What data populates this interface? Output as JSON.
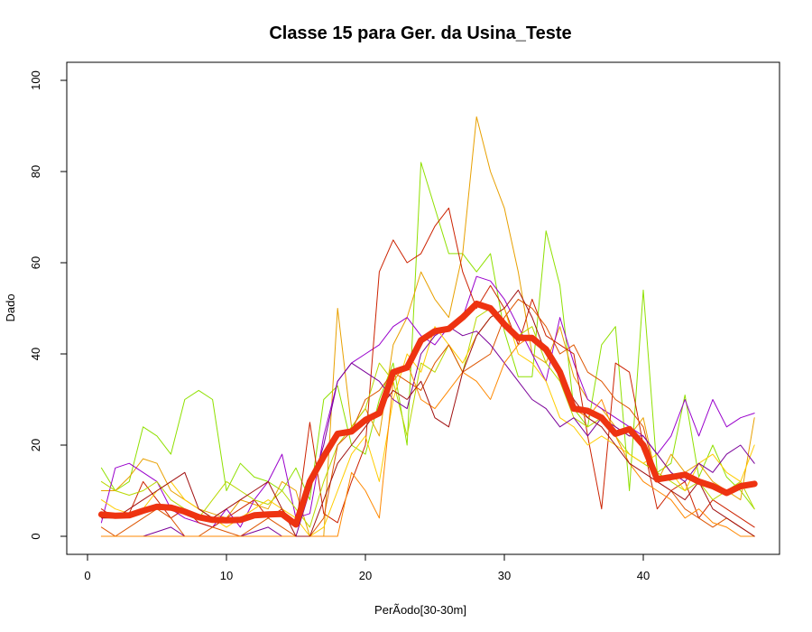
{
  "chart_data": {
    "type": "line",
    "title": "Classe  15 para Ger. da Usina_Teste",
    "xlabel": "PerÃ­odo[30-30m]",
    "ylabel": "Dado",
    "xlim": [
      1,
      48
    ],
    "ylim": [
      0,
      100
    ],
    "x_ticks": [
      0,
      10,
      20,
      30,
      40
    ],
    "y_ticks": [
      0,
      20,
      40,
      60,
      80,
      100
    ],
    "x_tick_labels": [
      "0",
      "10",
      "20",
      "30",
      "40"
    ],
    "y_tick_labels": [
      "0",
      "20",
      "40",
      "60",
      "80",
      "100"
    ],
    "grid": false,
    "legend": "none",
    "x": [
      1,
      2,
      3,
      4,
      5,
      6,
      7,
      8,
      9,
      10,
      11,
      12,
      13,
      14,
      15,
      16,
      17,
      18,
      19,
      20,
      21,
      22,
      23,
      24,
      25,
      26,
      27,
      28,
      29,
      30,
      31,
      32,
      33,
      34,
      35,
      36,
      37,
      38,
      39,
      40,
      41,
      42,
      43,
      44,
      45,
      46,
      47,
      48
    ],
    "series": [
      {
        "color": "#8fe000",
        "values": [
          15,
          10,
          12,
          24,
          22,
          18,
          30,
          32,
          30,
          10,
          16,
          13,
          12,
          10,
          15,
          8,
          30,
          33,
          20,
          18,
          30,
          38,
          20,
          82,
          72,
          62,
          62,
          58,
          62,
          45,
          35,
          35,
          67,
          55,
          28,
          24,
          42,
          46,
          10,
          54,
          14,
          16,
          31,
          13,
          20,
          13,
          10,
          6
        ]
      },
      {
        "color": "#e8a000",
        "values": [
          10,
          10,
          13,
          17,
          16,
          10,
          8,
          6,
          5,
          4,
          8,
          7,
          6,
          12,
          10,
          0,
          0,
          50,
          24,
          28,
          22,
          42,
          48,
          58,
          52,
          48,
          62,
          92,
          80,
          72,
          58,
          40,
          38,
          46,
          35,
          30,
          28,
          24,
          22,
          26,
          12,
          18,
          14,
          16,
          12,
          10,
          8,
          26
        ]
      },
      {
        "color": "#9900cc",
        "values": [
          3,
          15,
          16,
          14,
          12,
          6,
          4,
          3,
          2,
          6,
          2,
          8,
          12,
          18,
          4,
          5,
          22,
          34,
          38,
          40,
          42,
          46,
          48,
          44,
          42,
          46,
          48,
          57,
          56,
          52,
          46,
          40,
          34,
          48,
          38,
          30,
          28,
          26,
          24,
          22,
          18,
          22,
          30,
          22,
          30,
          24,
          26,
          27
        ]
      },
      {
        "color": "#cc2200",
        "values": [
          6,
          4,
          5,
          12,
          8,
          4,
          6,
          3,
          2,
          4,
          6,
          8,
          4,
          6,
          2,
          25,
          5,
          3,
          12,
          20,
          58,
          65,
          60,
          62,
          68,
          72,
          58,
          50,
          55,
          50,
          42,
          52,
          44,
          42,
          40,
          22,
          6,
          38,
          36,
          20,
          6,
          10,
          12,
          4,
          8,
          6,
          4,
          2
        ]
      },
      {
        "color": "#b8d800",
        "values": [
          12,
          10,
          9,
          10,
          12,
          8,
          6,
          4,
          8,
          12,
          10,
          8,
          7,
          10,
          6,
          2,
          12,
          20,
          24,
          28,
          38,
          34,
          22,
          38,
          36,
          42,
          36,
          48,
          50,
          46,
          44,
          46,
          38,
          34,
          26,
          24,
          26,
          22,
          18,
          16,
          14,
          12,
          10,
          12,
          8,
          10,
          12,
          6
        ]
      },
      {
        "color": "#ffcc00",
        "values": [
          8,
          6,
          5,
          6,
          10,
          12,
          8,
          6,
          4,
          2,
          4,
          6,
          8,
          6,
          4,
          0,
          2,
          10,
          18,
          22,
          12,
          30,
          40,
          36,
          46,
          42,
          38,
          44,
          48,
          50,
          40,
          38,
          34,
          26,
          24,
          20,
          22,
          20,
          18,
          16,
          18,
          14,
          10,
          16,
          18,
          14,
          12,
          20
        ]
      },
      {
        "color": "#dd5500",
        "values": [
          2,
          0,
          2,
          4,
          6,
          4,
          0,
          0,
          2,
          1,
          0,
          2,
          4,
          2,
          0,
          0,
          4,
          20,
          23,
          30,
          32,
          36,
          34,
          32,
          38,
          42,
          36,
          38,
          40,
          48,
          52,
          50,
          46,
          40,
          42,
          36,
          34,
          30,
          28,
          24,
          12,
          10,
          6,
          4,
          2,
          4,
          2,
          0
        ]
      },
      {
        "color": "#7a0099",
        "values": [
          0,
          0,
          0,
          0,
          1,
          2,
          0,
          0,
          0,
          0,
          0,
          1,
          2,
          0,
          0,
          10,
          20,
          34,
          38,
          36,
          34,
          30,
          28,
          40,
          44,
          46,
          44,
          45,
          42,
          38,
          34,
          30,
          28,
          24,
          26,
          22,
          26,
          24,
          22,
          22,
          18,
          14,
          12,
          16,
          14,
          18,
          20,
          16
        ]
      },
      {
        "color": "#ff8800",
        "values": [
          0,
          0,
          0,
          0,
          0,
          0,
          0,
          0,
          0,
          0,
          0,
          0,
          0,
          0,
          0,
          0,
          0,
          0,
          14,
          10,
          4,
          34,
          38,
          30,
          28,
          32,
          36,
          34,
          30,
          38,
          42,
          44,
          40,
          36,
          28,
          26,
          30,
          22,
          16,
          12,
          10,
          8,
          4,
          6,
          3,
          2,
          0,
          0
        ]
      },
      {
        "color": "#a01010",
        "values": [
          4,
          4,
          6,
          8,
          10,
          12,
          14,
          6,
          4,
          6,
          8,
          10,
          12,
          6,
          0,
          0,
          8,
          16,
          20,
          24,
          28,
          32,
          30,
          34,
          26,
          24,
          36,
          44,
          48,
          50,
          54,
          48,
          40,
          36,
          30,
          26,
          24,
          20,
          16,
          14,
          12,
          10,
          8,
          12,
          6,
          4,
          2,
          0
        ]
      },
      {
        "color": "#ee3311",
        "name": "",
        "values": [
          4.8,
          4.5,
          4.6,
          5.6,
          6.5,
          6.3,
          5.4,
          4.2,
          3.6,
          3.5,
          3.6,
          4.6,
          4.8,
          4.9,
          2.6,
          12,
          17.5,
          22.5,
          23,
          25.5,
          27,
          36,
          37,
          43,
          45,
          45.5,
          48,
          51,
          50,
          46.5,
          43.5,
          43.5,
          41,
          36,
          28,
          27.5,
          26,
          22.5,
          23.5,
          20,
          12.5,
          13,
          13.5,
          12,
          11,
          9.5,
          11,
          11.5
        ]
      }
    ]
  }
}
